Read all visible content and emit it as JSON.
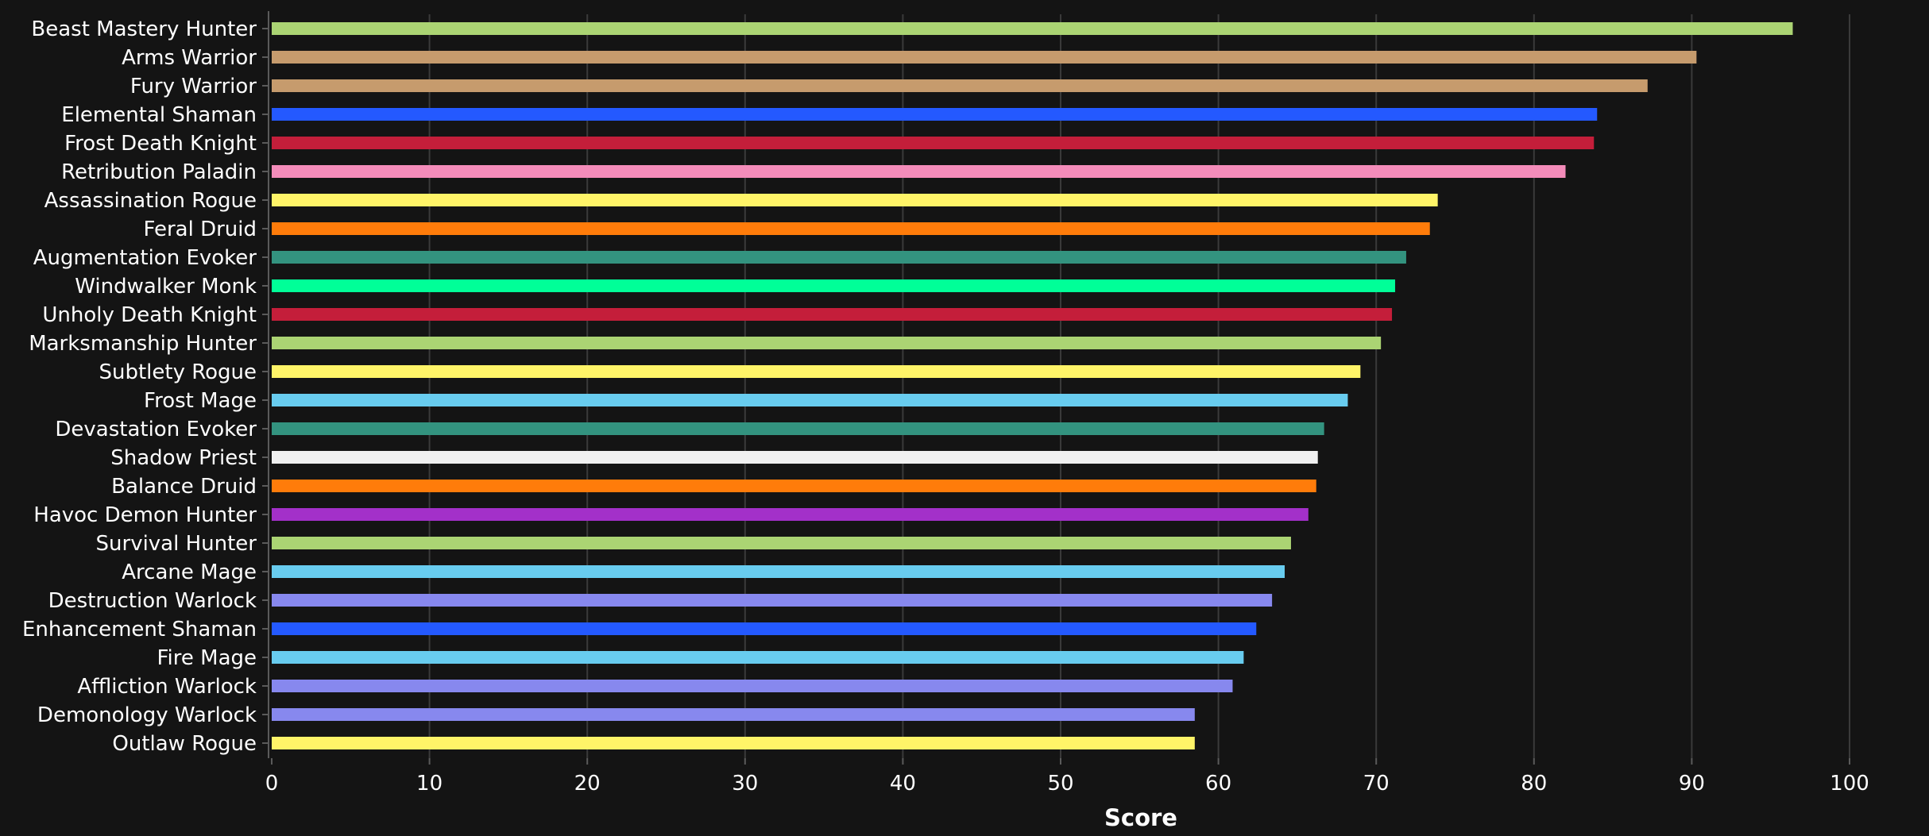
{
  "chart_data": {
    "type": "bar",
    "orientation": "horizontal",
    "title": "",
    "xlabel": "Score",
    "ylabel": "",
    "xlim": [
      0,
      100
    ],
    "xticks": [
      0,
      10,
      20,
      30,
      40,
      50,
      60,
      70,
      80,
      90,
      100
    ],
    "grid": true,
    "legend": "none",
    "background": "#141414",
    "categories": [
      "Beast Mastery Hunter",
      "Arms Warrior",
      "Fury Warrior",
      "Elemental Shaman",
      "Frost Death Knight",
      "Retribution Paladin",
      "Assassination Rogue",
      "Feral Druid",
      "Augmentation Evoker",
      "Windwalker Monk",
      "Unholy Death Knight",
      "Marksmanship Hunter",
      "Subtlety Rogue",
      "Frost Mage",
      "Devastation Evoker",
      "Shadow Priest",
      "Balance Druid",
      "Havoc Demon Hunter",
      "Survival Hunter",
      "Arcane Mage",
      "Destruction Warlock",
      "Enhancement Shaman",
      "Fire Mage",
      "Affliction Warlock",
      "Demonology Warlock",
      "Outlaw Rogue"
    ],
    "values": [
      96.4,
      90.3,
      87.2,
      84.0,
      83.8,
      82.0,
      73.9,
      73.4,
      71.9,
      71.2,
      71.0,
      70.3,
      69.0,
      68.2,
      66.7,
      66.3,
      66.2,
      65.7,
      64.6,
      64.2,
      63.4,
      62.4,
      61.6,
      60.9,
      58.5,
      58.5
    ],
    "colors": [
      "#abd473",
      "#c69b6d",
      "#c69b6d",
      "#2459ff",
      "#c41e3a",
      "#f48cba",
      "#fff468",
      "#ff7c0a",
      "#33937f",
      "#00ff98",
      "#c41e3a",
      "#abd473",
      "#fff468",
      "#68ccef",
      "#33937f",
      "#f0f0f0",
      "#ff7c0a",
      "#a330c9",
      "#abd473",
      "#68ccef",
      "#8788ee",
      "#2459ff",
      "#68ccef",
      "#8788ee",
      "#8788ee",
      "#fff468"
    ]
  }
}
